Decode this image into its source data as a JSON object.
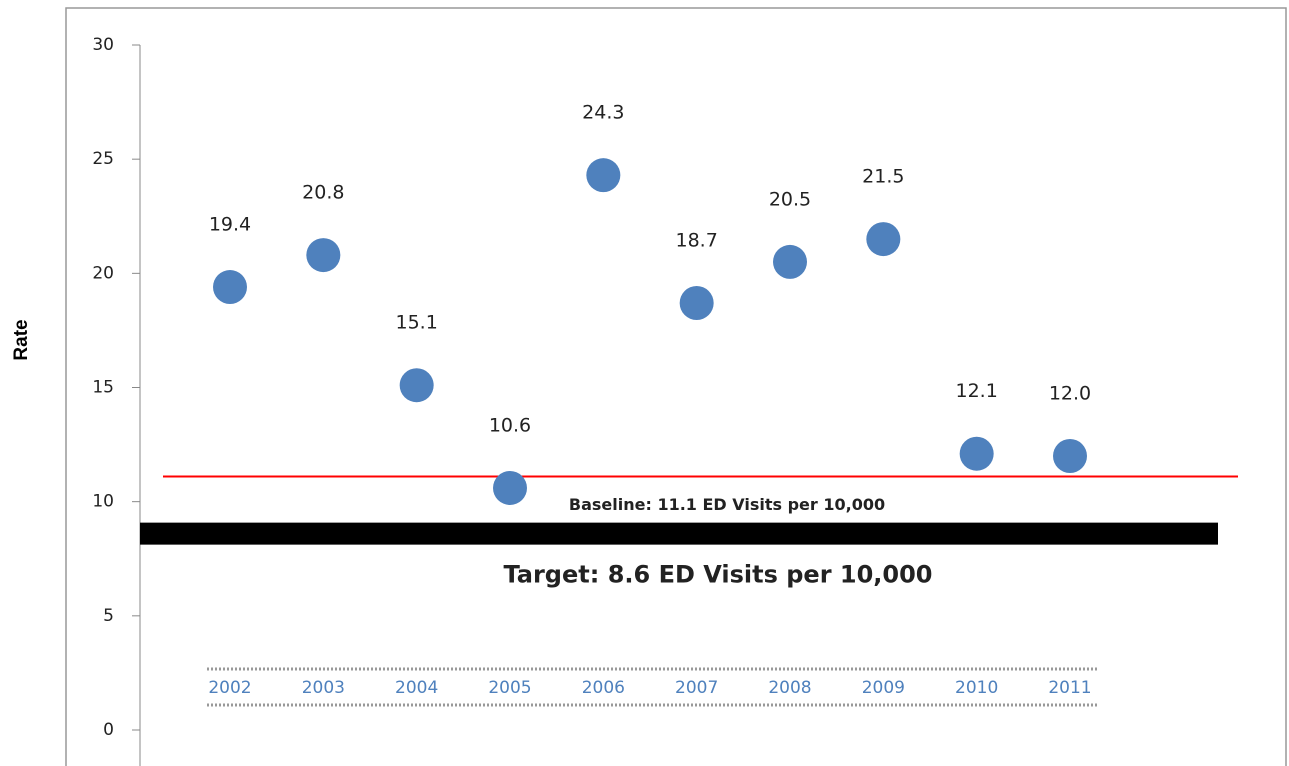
{
  "chart_data": {
    "type": "scatter",
    "y_axis_label": "Rate",
    "categories": [
      "2002",
      "2003",
      "2004",
      "2005",
      "2006",
      "2007",
      "2008",
      "2009",
      "2010",
      "2011"
    ],
    "values": [
      19.4,
      20.8,
      15.1,
      10.6,
      24.3,
      18.7,
      20.5,
      21.5,
      12.1,
      12.0
    ],
    "value_labels": [
      "19.4",
      "20.8",
      "15.1",
      "10.6",
      "24.3",
      "18.7",
      "20.5",
      "21.5",
      "12.1",
      "12.0"
    ],
    "color": "#4f81bd",
    "ylim": [
      0,
      30
    ],
    "yticks": [
      0,
      5,
      10,
      15,
      20,
      25,
      30
    ],
    "reference_lines": [
      {
        "label": "Baseline: 11.1 ED Visits per 10,000",
        "value": 11.1,
        "color": "#ff0000"
      },
      {
        "label": "Target: 8.6 ED Visits per 10,000",
        "value": 8.6,
        "color": "#000000"
      }
    ]
  }
}
